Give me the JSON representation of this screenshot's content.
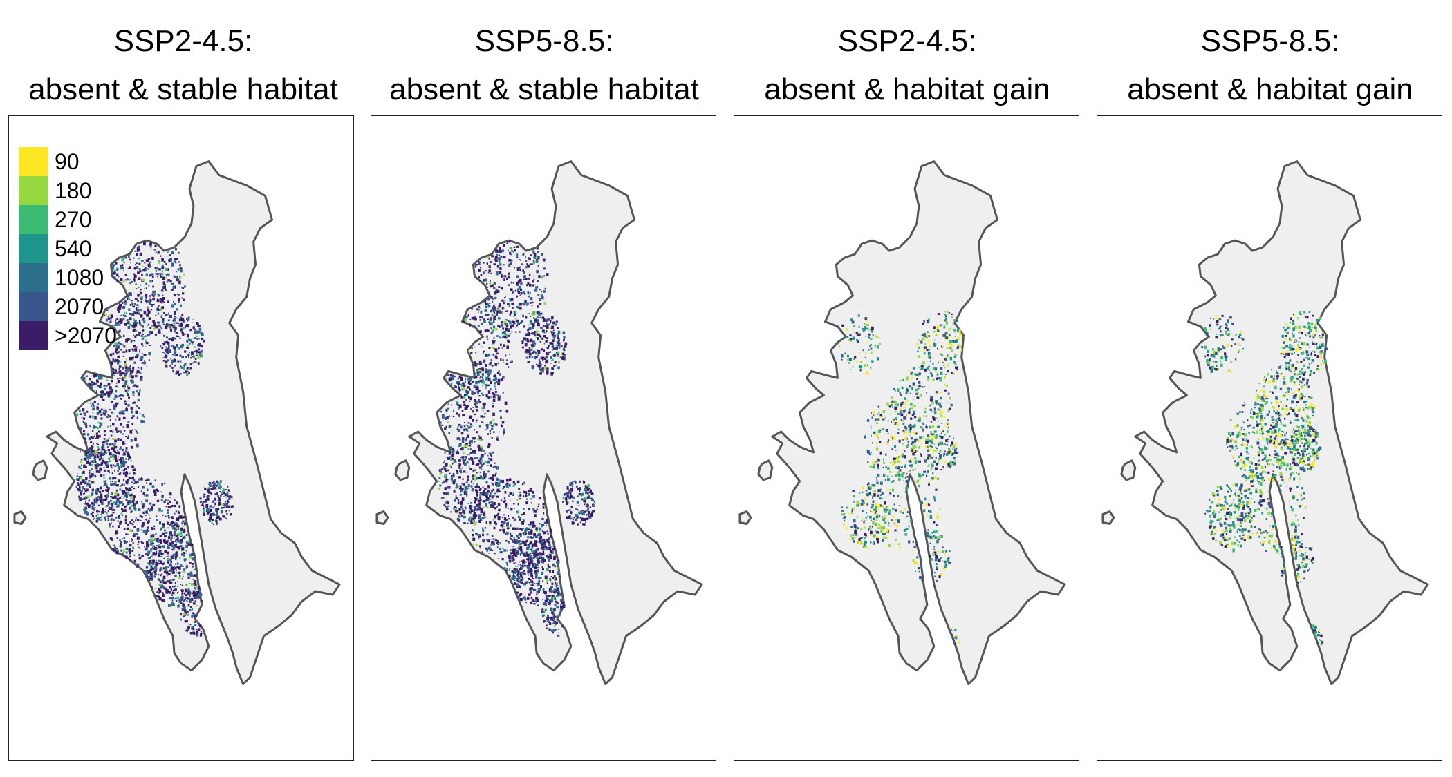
{
  "panels": [
    {
      "title_line1": "SSP2-4.5:",
      "title_line2": "absent & stable habitat",
      "mode": "stable",
      "density": 1.0
    },
    {
      "title_line1": "SSP5-8.5:",
      "title_line2": "absent & stable habitat",
      "mode": "stable",
      "density": 0.95
    },
    {
      "title_line1": "SSP2-4.5:",
      "title_line2": "absent & habitat gain",
      "mode": "gain",
      "density": 0.75
    },
    {
      "title_line1": "SSP5-8.5:",
      "title_line2": "absent & habitat gain",
      "mode": "gain",
      "density": 1.0
    }
  ],
  "legend": {
    "items": [
      {
        "label": "90",
        "color": "#FDE725"
      },
      {
        "label": "180",
        "color": "#95D840"
      },
      {
        "label": "270",
        "color": "#3CBB75"
      },
      {
        "label": "540",
        "color": "#1F968B"
      },
      {
        "label": "1080",
        "color": "#2D708E"
      },
      {
        "label": "2070",
        "color": "#39568C"
      },
      {
        "label": ">2070",
        "color": "#3B1C67"
      }
    ]
  },
  "colors": {
    "land_fill": "#EFEFEF",
    "coastline": "#555555",
    "frame": "#222222"
  }
}
